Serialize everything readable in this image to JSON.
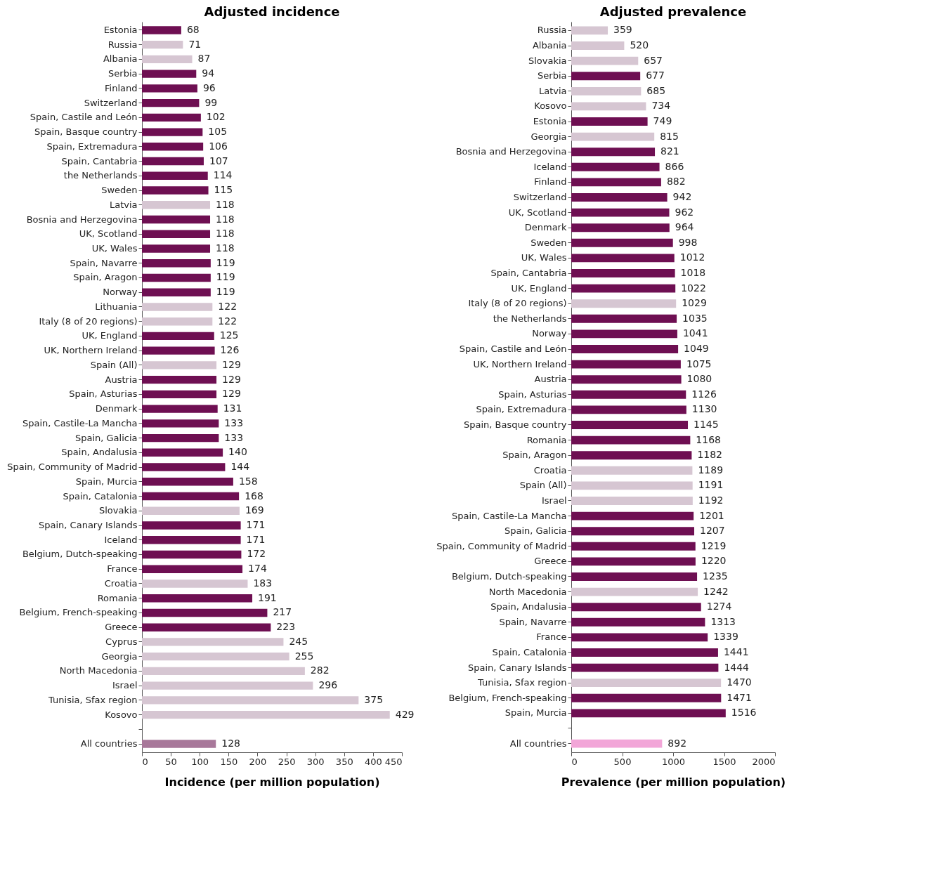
{
  "chart_data": [
    {
      "type": "bar",
      "orientation": "horizontal",
      "title": "Adjusted incidence",
      "xlabel": "Incidence (per million population)",
      "data_labels": true,
      "grid": false,
      "xlim": [
        0,
        450
      ],
      "xticks": [
        0,
        50,
        100,
        150,
        200,
        250,
        300,
        350,
        400,
        450
      ],
      "categories": [
        "Estonia",
        "Russia",
        "Albania",
        "Serbia",
        "Finland",
        "Switzerland",
        "Spain, Castile and León",
        "Spain, Basque country",
        "Spain, Extremadura",
        "Spain, Cantabria",
        "the Netherlands",
        "Sweden",
        "Latvia",
        "Bosnia and Herzegovina",
        "UK, Scotland",
        "UK, Wales",
        "Spain, Navarre",
        "Spain, Aragon",
        "Norway",
        "Lithuania",
        "Italy (8 of 20 regions)",
        "UK, England",
        "UK, Northern Ireland",
        "Spain (All)",
        "Austria",
        "Spain, Asturias",
        "Denmark",
        "Spain, Castile-La Mancha",
        "Spain, Galicia",
        "Spain, Andalusia",
        "Spain, Community of Madrid",
        "Spain, Murcia",
        "Spain, Catalonia",
        "Slovakia",
        "Spain, Canary Islands",
        "Iceland",
        "Belgium, Dutch-speaking",
        "France",
        "Croatia",
        "Romania",
        "Belgium, French-speaking",
        "Greece",
        "Cyprus",
        "Georgia",
        "North Macedonia",
        "Israel",
        "Tunisia, Sfax region",
        "Kosovo",
        null,
        "All countries"
      ],
      "values": [
        68,
        71,
        87,
        94,
        96,
        99,
        102,
        105,
        106,
        107,
        114,
        115,
        118,
        118,
        118,
        118,
        119,
        119,
        119,
        122,
        122,
        125,
        126,
        129,
        129,
        129,
        131,
        133,
        133,
        140,
        144,
        158,
        168,
        169,
        171,
        171,
        172,
        174,
        183,
        191,
        217,
        223,
        245,
        255,
        282,
        296,
        375,
        429,
        null,
        128
      ],
      "colors": [
        "#6e0f52",
        "#d6c6d2",
        "#d6c6d2",
        "#6e0f52",
        "#6e0f52",
        "#6e0f52",
        "#6e0f52",
        "#6e0f52",
        "#6e0f52",
        "#6e0f52",
        "#6e0f52",
        "#6e0f52",
        "#d6c6d2",
        "#6e0f52",
        "#6e0f52",
        "#6e0f52",
        "#6e0f52",
        "#6e0f52",
        "#6e0f52",
        "#d6c6d2",
        "#d6c6d2",
        "#6e0f52",
        "#6e0f52",
        "#d6c6d2",
        "#6e0f52",
        "#6e0f52",
        "#6e0f52",
        "#6e0f52",
        "#6e0f52",
        "#6e0f52",
        "#6e0f52",
        "#6e0f52",
        "#6e0f52",
        "#d6c6d2",
        "#6e0f52",
        "#6e0f52",
        "#6e0f52",
        "#6e0f52",
        "#d6c6d2",
        "#6e0f52",
        "#6e0f52",
        "#6e0f52",
        "#d6c6d2",
        "#d6c6d2",
        "#d6c6d2",
        "#d6c6d2",
        "#d6c6d2",
        "#d6c6d2",
        null,
        "#a8789a"
      ]
    },
    {
      "type": "bar",
      "orientation": "horizontal",
      "title": "Adjusted prevalence",
      "xlabel": "Prevalence (per million population)",
      "data_labels": true,
      "grid": false,
      "xlim": [
        0,
        2000
      ],
      "xticks": [
        0,
        500,
        1000,
        1500,
        2000
      ],
      "categories": [
        "Russia",
        "Albania",
        "Slovakia",
        "Serbia",
        "Latvia",
        "Kosovo",
        "Estonia",
        "Georgia",
        "Bosnia and Herzegovina",
        "Iceland",
        "Finland",
        "Switzerland",
        "UK, Scotland",
        "Denmark",
        "Sweden",
        "UK, Wales",
        "Spain, Cantabria",
        "UK, England",
        "Italy (8 of 20 regions)",
        "the Netherlands",
        "Norway",
        "Spain, Castile and León",
        "UK, Northern Ireland",
        "Austria",
        "Spain, Asturias",
        "Spain, Extremadura",
        "Spain, Basque country",
        "Romania",
        "Spain, Aragon",
        "Croatia",
        "Spain (All)",
        "Israel",
        "Spain, Castile-La Mancha",
        "Spain, Galicia",
        "Spain, Community of Madrid",
        "Greece",
        "Belgium, Dutch-speaking",
        "North Macedonia",
        "Spain, Andalusia",
        "Spain, Navarre",
        "France",
        "Spain, Catalonia",
        "Spain, Canary Islands",
        "Tunisia, Sfax region",
        "Belgium, French-speaking",
        "Spain, Murcia",
        null,
        "All countries"
      ],
      "values": [
        359,
        520,
        657,
        677,
        685,
        734,
        749,
        815,
        821,
        866,
        882,
        942,
        962,
        964,
        998,
        1012,
        1018,
        1022,
        1029,
        1035,
        1041,
        1049,
        1075,
        1080,
        1126,
        1130,
        1145,
        1168,
        1182,
        1189,
        1191,
        1192,
        1201,
        1207,
        1219,
        1220,
        1235,
        1242,
        1274,
        1313,
        1339,
        1441,
        1444,
        1470,
        1471,
        1516,
        null,
        892
      ],
      "colors": [
        "#d6c6d2",
        "#d6c6d2",
        "#d6c6d2",
        "#6e0f52",
        "#d6c6d2",
        "#d6c6d2",
        "#6e0f52",
        "#d6c6d2",
        "#6e0f52",
        "#6e0f52",
        "#6e0f52",
        "#6e0f52",
        "#6e0f52",
        "#6e0f52",
        "#6e0f52",
        "#6e0f52",
        "#6e0f52",
        "#6e0f52",
        "#d6c6d2",
        "#6e0f52",
        "#6e0f52",
        "#6e0f52",
        "#6e0f52",
        "#6e0f52",
        "#6e0f52",
        "#6e0f52",
        "#6e0f52",
        "#6e0f52",
        "#6e0f52",
        "#d6c6d2",
        "#d6c6d2",
        "#d6c6d2",
        "#6e0f52",
        "#6e0f52",
        "#6e0f52",
        "#6e0f52",
        "#6e0f52",
        "#d6c6d2",
        "#6e0f52",
        "#6e0f52",
        "#6e0f52",
        "#6e0f52",
        "#6e0f52",
        "#d6c6d2",
        "#6e0f52",
        "#6e0f52",
        null,
        "#f2a6d8"
      ]
    }
  ]
}
